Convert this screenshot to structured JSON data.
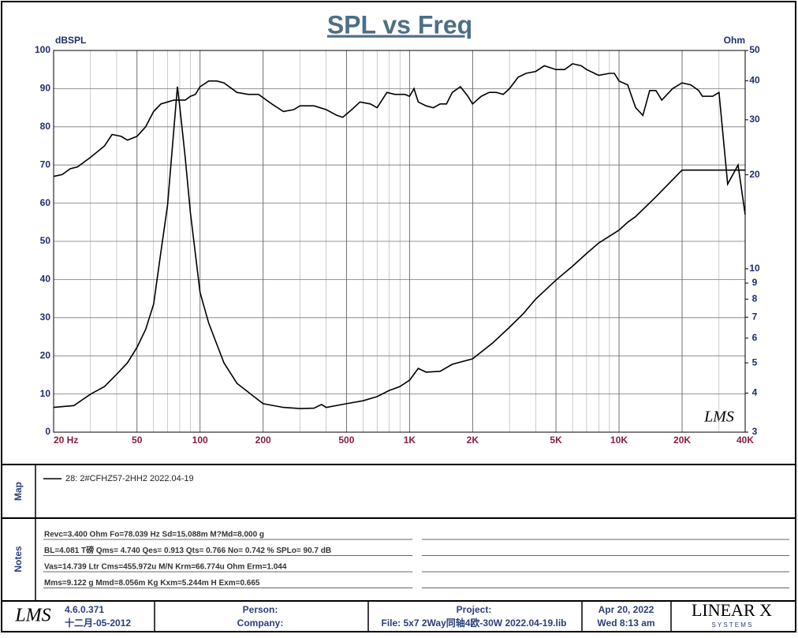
{
  "chart_data": {
    "type": "line",
    "title": "SPL vs Freq",
    "ylabel": "dBSPL",
    "y2label": "Ohm",
    "watermark": "LMS",
    "xscale": "log",
    "xlim": [
      20,
      40000
    ],
    "xticks": [
      {
        "value": 20,
        "label": "20  Hz"
      },
      50,
      100,
      200,
      500,
      {
        "value": 1000,
        "label": "1K"
      },
      {
        "value": 2000,
        "label": "2K"
      },
      {
        "value": 5000,
        "label": "5K"
      },
      {
        "value": 10000,
        "label": "10K"
      },
      {
        "value": 20000,
        "label": "20K"
      },
      {
        "value": 40000,
        "label": "40K"
      }
    ],
    "ylim": [
      0,
      100
    ],
    "yticks": [
      0,
      10,
      20,
      30,
      40,
      50,
      60,
      70,
      80,
      90,
      100
    ],
    "y2scale": "log",
    "y2lim": [
      3,
      50
    ],
    "y2ticks": [
      3,
      4,
      5,
      6,
      7,
      8,
      9,
      10,
      20,
      30,
      40,
      50
    ],
    "grid": true,
    "series": [
      {
        "name": "28: 2#CFHZ57-2HH2 2022.04-19",
        "color": "#000000",
        "x": [
          20,
          22,
          24,
          26,
          30,
          35,
          38,
          42,
          45,
          50,
          55,
          60,
          65,
          70,
          75,
          80,
          85,
          90,
          95,
          100,
          110,
          120,
          130,
          150,
          170,
          190,
          220,
          250,
          280,
          300,
          350,
          400,
          450,
          480,
          530,
          580,
          650,
          700,
          780,
          850,
          950,
          1000,
          1050,
          1100,
          1200,
          1300,
          1400,
          1500,
          1600,
          1750,
          1900,
          2000,
          2200,
          2400,
          2600,
          2800,
          3000,
          3300,
          3600,
          4000,
          4400,
          5000,
          5500,
          6000,
          6600,
          7000,
          8000,
          9000,
          9500,
          10000,
          11000,
          12000,
          13000,
          14000,
          15000,
          16000,
          18000,
          20000,
          22000,
          24000,
          25000,
          28000,
          30000,
          33000,
          37000,
          40000
        ],
        "values": [
          67,
          67.5,
          69,
          69.5,
          72,
          75,
          78,
          77.5,
          76.5,
          77.5,
          80,
          84,
          86,
          86.5,
          87,
          87,
          87,
          88,
          88.5,
          90.5,
          92,
          92,
          91.5,
          89,
          88.5,
          88.5,
          86,
          84,
          84.5,
          85.5,
          85.5,
          84.5,
          83,
          82.5,
          84.5,
          86.5,
          86,
          85,
          89,
          88.5,
          88.5,
          88,
          90,
          86.5,
          85.5,
          85,
          86,
          86,
          89,
          90.5,
          88,
          86,
          88,
          89,
          89,
          88.5,
          90,
          93,
          94,
          94.5,
          96,
          95,
          95,
          96.5,
          96,
          95,
          93.5,
          94,
          94,
          92,
          91,
          85,
          83,
          89.5,
          89.5,
          87,
          90,
          91.5,
          91,
          89.5,
          88,
          88,
          89,
          65,
          70,
          57
        ]
      },
      {
        "axis": "y2",
        "color": "#000000",
        "x": [
          20,
          25,
          30,
          35,
          40,
          45,
          50,
          55,
          60,
          65,
          70,
          75,
          78,
          80,
          85,
          90,
          100,
          110,
          130,
          150,
          200,
          250,
          300,
          350,
          380,
          400,
          500,
          600,
          700,
          800,
          900,
          1000,
          1100,
          1200,
          1400,
          1600,
          2000,
          2500,
          3000,
          3500,
          4000,
          5000,
          6000,
          7000,
          8000,
          10000,
          11000,
          12000,
          15000,
          20000,
          30000,
          40000
        ],
        "values": [
          3.6,
          3.65,
          3.97,
          4.2,
          4.6,
          5.0,
          5.6,
          6.4,
          7.7,
          11.3,
          16,
          28,
          38.3,
          33,
          22.7,
          15.1,
          8.4,
          6.7,
          5.0,
          4.3,
          3.7,
          3.6,
          3.57,
          3.58,
          3.68,
          3.6,
          3.7,
          3.78,
          3.9,
          4.08,
          4.2,
          4.4,
          4.8,
          4.67,
          4.7,
          4.95,
          5.15,
          5.8,
          6.5,
          7.2,
          8.0,
          9.2,
          10.2,
          11.2,
          12.1,
          13.3,
          14.1,
          14.7,
          17,
          20.7,
          20.7,
          20.7
        ]
      }
    ]
  },
  "map": {
    "label": "Map"
  },
  "notes": {
    "label": "Notes",
    "lines": [
      "Revc=3.400 Ohm  Fo=78.039 Hz  Sd=15.088m M?Md=8.000 g",
      "BL=4.081 T磅  Qms= 4.740  Qes= 0.913  Qts= 0.766  No= 0.742 %  SPLo= 90.7 dB",
      "Vas=14.739 Ltr  Cms=455.972u M/N  Krm=66.774u Ohm  Erm=1.044",
      "Mms=9.122 g  Mmd=8.056m Kg  Kxm=5.244m H  Exm=0.665"
    ]
  },
  "footer": {
    "logo": "LMS",
    "version": "4.6.0.371",
    "build_date": "十二月-05-2012",
    "person": "Person:",
    "company": "Company:",
    "project": "Project:",
    "file": "File: 5x7 2Way同轴4欧-30W 2022.04-19.lib",
    "date": "Apr 20, 2022",
    "time": "Wed  8:13 am",
    "brand": "LINEAR X",
    "brand_sub": "S Y S T E M S"
  }
}
